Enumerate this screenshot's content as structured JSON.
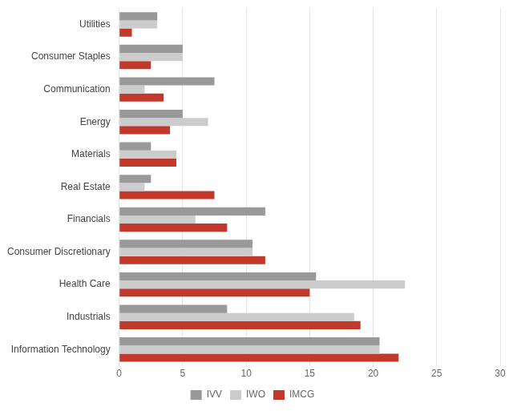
{
  "chart_data": {
    "type": "bar",
    "orientation": "horizontal",
    "categories": [
      "Information Technology",
      "Industrials",
      "Health Care",
      "Consumer Discretionary",
      "Financials",
      "Real Estate",
      "Materials",
      "Energy",
      "Communication",
      "Consumer Staples",
      "Utilities"
    ],
    "series": [
      {
        "name": "IVV",
        "color": "#999999",
        "values": [
          20.5,
          8.5,
          15.5,
          10.5,
          11.5,
          2.5,
          2.5,
          5.0,
          7.5,
          5.0,
          3.0
        ]
      },
      {
        "name": "IWO",
        "color": "#cccccc",
        "values": [
          20.5,
          18.5,
          22.5,
          10.5,
          6.0,
          2.0,
          4.5,
          7.0,
          2.0,
          5.0,
          3.0
        ]
      },
      {
        "name": "IMCG",
        "color": "#c0392b",
        "values": [
          22.0,
          19.0,
          15.0,
          11.5,
          8.5,
          7.5,
          4.5,
          4.0,
          3.5,
          2.5,
          1.0
        ]
      }
    ],
    "xlim": [
      0,
      30
    ],
    "xticks": [
      0,
      5,
      10,
      15,
      20,
      25,
      30
    ],
    "grid": true,
    "legend": "bottom"
  }
}
